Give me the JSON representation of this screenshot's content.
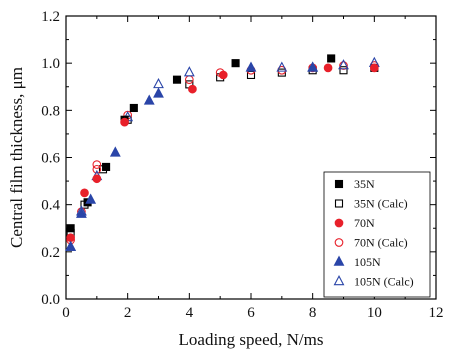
{
  "chart_data": {
    "type": "scatter",
    "title": "",
    "xlabel": "Loading speed, N/ms",
    "ylabel": "Central film thickness, μm",
    "xlim": [
      0,
      12
    ],
    "ylim": [
      0,
      1.2
    ],
    "x_ticks": [
      "0",
      "2",
      "4",
      "6",
      "8",
      "10",
      "12"
    ],
    "y_ticks": [
      "0.0",
      "0.2",
      "0.4",
      "0.6",
      "0.8",
      "1.0",
      "1.2"
    ],
    "x_tick_values": [
      0,
      2,
      4,
      6,
      8,
      10,
      12
    ],
    "y_tick_values": [
      0,
      0.2,
      0.4,
      0.6,
      0.8,
      1.0,
      1.2
    ],
    "grid": false,
    "legend_position": "bottom-right",
    "series": [
      {
        "name": "35N",
        "marker": "square",
        "filled": true,
        "color": "#000000",
        "points": [
          [
            0.15,
            0.3
          ],
          [
            0.7,
            0.41
          ],
          [
            1.3,
            0.56
          ],
          [
            1.9,
            0.76
          ],
          [
            2.2,
            0.81
          ],
          [
            3.6,
            0.93
          ],
          [
            5.5,
            1.0
          ],
          [
            8.6,
            1.02
          ]
        ]
      },
      {
        "name": "35N (Calc)",
        "marker": "square",
        "filled": false,
        "color": "#000000",
        "points": [
          [
            0.15,
            0.28
          ],
          [
            0.6,
            0.4
          ],
          [
            1.2,
            0.55
          ],
          [
            2.0,
            0.76
          ],
          [
            4.0,
            0.91
          ],
          [
            5.0,
            0.94
          ],
          [
            6.0,
            0.95
          ],
          [
            7.0,
            0.96
          ],
          [
            8.0,
            0.97
          ],
          [
            9.0,
            0.97
          ],
          [
            10.0,
            0.98
          ]
        ]
      },
      {
        "name": "70N",
        "marker": "circle",
        "filled": true,
        "color": "#e8202a",
        "points": [
          [
            0.15,
            0.26
          ],
          [
            0.6,
            0.45
          ],
          [
            1.0,
            0.51
          ],
          [
            1.9,
            0.75
          ],
          [
            4.1,
            0.89
          ],
          [
            5.1,
            0.95
          ],
          [
            8.5,
            0.98
          ],
          [
            10.0,
            0.98
          ]
        ]
      },
      {
        "name": "70N (Calc)",
        "marker": "circle",
        "filled": false,
        "color": "#e8202a",
        "points": [
          [
            0.15,
            0.25
          ],
          [
            0.5,
            0.37
          ],
          [
            1.0,
            0.55
          ],
          [
            1.0,
            0.57
          ],
          [
            2.0,
            0.78
          ],
          [
            4.0,
            0.93
          ],
          [
            5.0,
            0.96
          ],
          [
            6.0,
            0.97
          ],
          [
            7.0,
            0.97
          ],
          [
            8.0,
            0.98
          ],
          [
            9.0,
            0.99
          ],
          [
            10.0,
            0.99
          ]
        ]
      },
      {
        "name": "105N",
        "marker": "triangle",
        "filled": true,
        "color": "#2a45a8",
        "points": [
          [
            0.15,
            0.22
          ],
          [
            0.5,
            0.36
          ],
          [
            0.8,
            0.42
          ],
          [
            1.6,
            0.62
          ],
          [
            2.7,
            0.84
          ],
          [
            3.0,
            0.87
          ],
          [
            6.0,
            0.98
          ],
          [
            8.0,
            0.98
          ]
        ]
      },
      {
        "name": "105N (Calc)",
        "marker": "triangle",
        "filled": false,
        "color": "#2a45a8",
        "points": [
          [
            0.15,
            0.22
          ],
          [
            0.5,
            0.37
          ],
          [
            1.0,
            0.52
          ],
          [
            2.0,
            0.77
          ],
          [
            3.0,
            0.91
          ],
          [
            4.0,
            0.96
          ],
          [
            7.0,
            0.98
          ],
          [
            8.0,
            0.98
          ],
          [
            9.0,
            0.99
          ],
          [
            10.0,
            1.0
          ]
        ]
      }
    ]
  }
}
